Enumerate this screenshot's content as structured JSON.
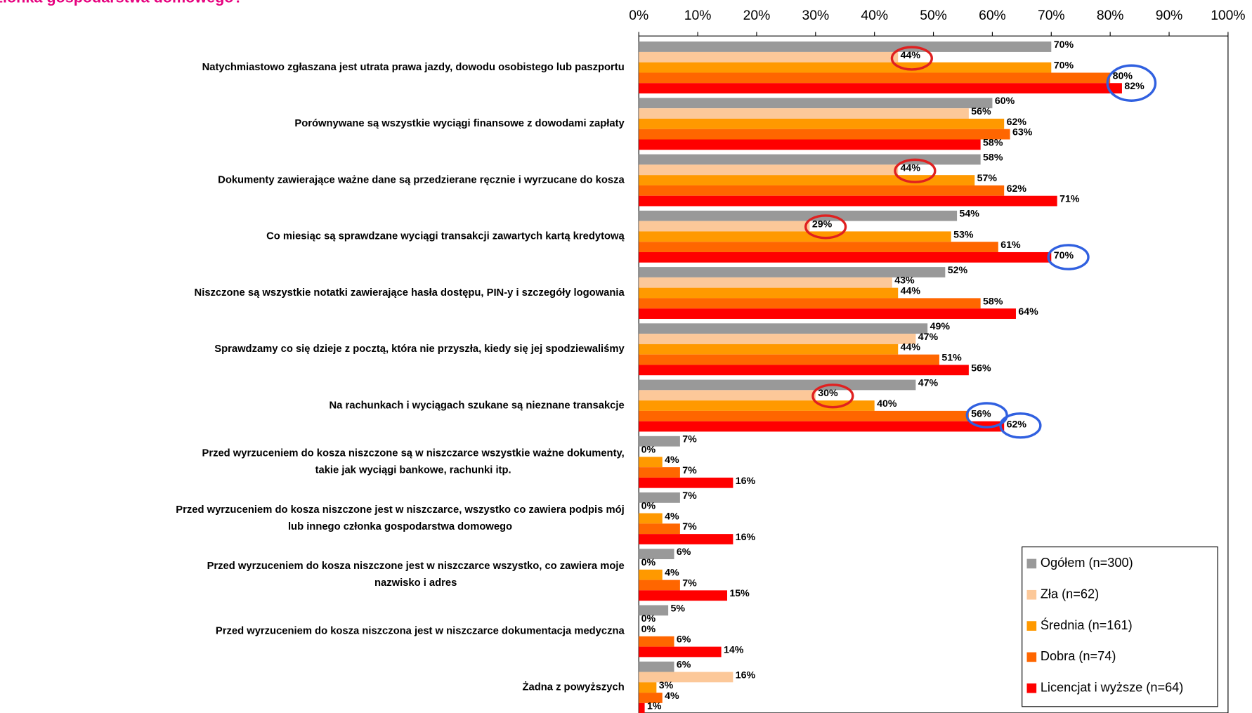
{
  "chart_data": {
    "type": "hbar",
    "title": "złonka gospodarstwa domowego?",
    "categories": [
      [
        "Natychmiastowo zgłaszana jest utrata prawa jazdy, dowodu osobistego lub paszportu"
      ],
      [
        "Porównywane są wszystkie wyciągi finansowe z dowodami zapłaty"
      ],
      [
        "Dokumenty zawierające ważne dane są przedzierane ręcznie i wyrzucane do kosza"
      ],
      [
        "Co miesiąc są sprawdzane wyciągi transakcji zawartych kartą kredytową"
      ],
      [
        "Niszczone są wszystkie notatki zawierające hasła dostępu, PIN-y i szczegóły logowania"
      ],
      [
        "Sprawdzamy co się dzieje z pocztą, która nie przyszła, kiedy się jej spodziewaliśmy"
      ],
      [
        "Na rachunkach i wyciągach szukane są nieznane transakcje"
      ],
      [
        "Przed wyrzuceniem do kosza niszczone są w niszczarce wszystkie ważne dokumenty,",
        "takie jak wyciągi bankowe, rachunki itp."
      ],
      [
        "Przed wyrzuceniem do kosza niszczone jest w niszczarce, wszystko co zawiera podpis mój",
        "lub innego członka gospodarstwa domowego"
      ],
      [
        "Przed wyrzuceniem do kosza niszczone jest w niszczarce wszystko, co zawiera moje",
        "nazwisko i adres"
      ],
      [
        "Przed wyrzuceniem do kosza niszczona jest w niszczarce dokumentacja medyczna"
      ],
      [
        "Żadna z powyższych"
      ]
    ],
    "series": [
      {
        "name": "Ogółem (n=300)",
        "color": "#999999",
        "values": [
          70,
          60,
          58,
          54,
          52,
          49,
          47,
          7,
          7,
          6,
          5,
          6
        ],
        "value_labels": [
          "70%",
          "60%",
          "58%",
          "54%",
          "52%",
          "49%",
          "47%",
          "7%",
          "7%",
          "6%",
          "5%",
          "6%"
        ]
      },
      {
        "name": "Zła (n=62)",
        "color": "#fcc899",
        "values": [
          44,
          56,
          44,
          29,
          43,
          47,
          30,
          0,
          0,
          0,
          0,
          16
        ],
        "value_labels": [
          "44%",
          "56%",
          "44%",
          "29%",
          "43%",
          "47%",
          "30%",
          "0%",
          "0%",
          "0%",
          "0%",
          "16%"
        ]
      },
      {
        "name": "Średnia (n=161)",
        "color": "#ff9900",
        "values": [
          70,
          62,
          57,
          53,
          44,
          44,
          40,
          4,
          4,
          4,
          0,
          3
        ],
        "value_labels": [
          "70%",
          "62%",
          "57%",
          "53%",
          "44%",
          "44%",
          "40%",
          "4%",
          "4%",
          "4%",
          "0%",
          "3%"
        ]
      },
      {
        "name": "Dobra (n=74)",
        "color": "#ff6600",
        "values": [
          80,
          63,
          62,
          61,
          58,
          51,
          56,
          7,
          7,
          7,
          6,
          4
        ],
        "value_labels": [
          "80%",
          "63%",
          "62%",
          "61%",
          "58%",
          "51%",
          "56%",
          "7%",
          "7%",
          "7%",
          "6%",
          "4%"
        ]
      },
      {
        "name": "Licencjat i wyższe (n=64)",
        "color": "#ff0000",
        "values": [
          82,
          58,
          71,
          70,
          64,
          56,
          62,
          16,
          16,
          15,
          14,
          1
        ],
        "value_labels": [
          "82%",
          "58%",
          "71%",
          "70%",
          "64%",
          "56%",
          "62%",
          "16%",
          "16%",
          "15%",
          "14%",
          "1%"
        ]
      }
    ],
    "xlim": [
      0,
      100
    ],
    "xticks": [
      {
        "value": 0,
        "label": "0%"
      },
      {
        "value": 10,
        "label": "10%"
      },
      {
        "value": 20,
        "label": "20%"
      },
      {
        "value": 30,
        "label": "30%"
      },
      {
        "value": 40,
        "label": "40%"
      },
      {
        "value": 50,
        "label": "50%"
      },
      {
        "value": 60,
        "label": "60%"
      },
      {
        "value": 70,
        "label": "70%"
      },
      {
        "value": 80,
        "label": "80%"
      },
      {
        "value": 90,
        "label": "90%"
      },
      {
        "value": 100,
        "label": "100%"
      }
    ],
    "legend": "lower right"
  }
}
